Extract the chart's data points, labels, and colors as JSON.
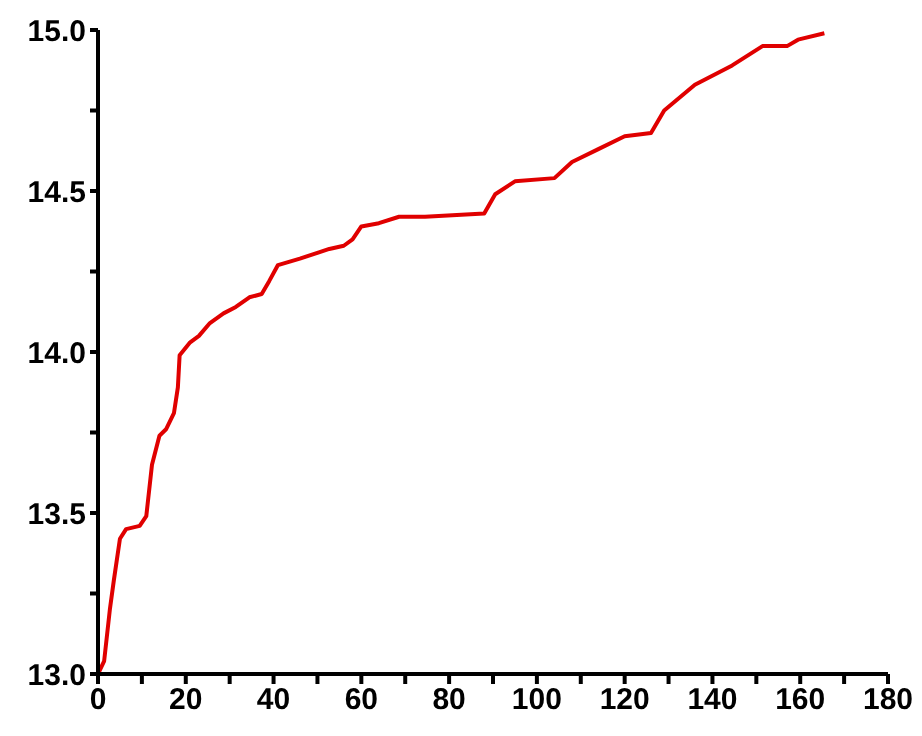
{
  "chart_data": {
    "type": "line",
    "x": [
      0,
      1.4,
      2.7,
      3.6,
      5,
      6.4,
      9.5,
      11,
      12.3,
      14,
      15.5,
      17.3,
      18.2,
      18.6,
      21,
      23,
      25.5,
      28.6,
      31.4,
      34.5,
      37.3,
      39,
      41,
      46,
      50.5,
      52.7,
      56,
      58,
      60,
      64,
      68.6,
      74.5,
      88,
      90.5,
      95,
      104,
      108,
      114,
      120,
      126,
      129,
      136,
      144.5,
      151.4,
      157,
      159.5,
      165.5
    ],
    "series": [
      {
        "color": "#e00000",
        "values": [
          13.0,
          13.04,
          13.2,
          13.29,
          13.42,
          13.45,
          13.46,
          13.49,
          13.65,
          13.74,
          13.76,
          13.81,
          13.89,
          13.99,
          14.03,
          14.05,
          14.09,
          14.12,
          14.14,
          14.17,
          14.18,
          14.22,
          14.27,
          14.29,
          14.31,
          14.32,
          14.33,
          14.35,
          14.39,
          14.4,
          14.42,
          14.42,
          14.43,
          14.49,
          14.53,
          14.54,
          14.59,
          14.63,
          14.67,
          14.68,
          14.75,
          14.83,
          14.89,
          14.95,
          14.95,
          14.97,
          14.99
        ]
      }
    ],
    "xlim": [
      0,
      180
    ],
    "xticks": [
      0,
      {
        "value": 10,
        "label": null
      },
      20,
      {
        "value": 30,
        "label": null
      },
      40,
      {
        "value": 50,
        "label": null
      },
      60,
      {
        "value": 70,
        "label": null
      },
      80,
      {
        "value": 90,
        "label": null
      },
      100,
      {
        "value": 110,
        "label": null
      },
      120,
      {
        "value": 130,
        "label": null
      },
      140,
      {
        "value": 150,
        "label": null
      },
      160,
      {
        "value": 170,
        "label": null
      },
      180
    ],
    "ylim": [
      13,
      15
    ],
    "yticks": [
      {
        "value": 13,
        "label": "13.0"
      },
      {
        "value": 13.25,
        "label": null
      },
      {
        "value": 13.5,
        "label": "13.5"
      },
      {
        "value": 13.75,
        "label": null
      },
      {
        "value": 14,
        "label": "14.0"
      },
      {
        "value": 14.25,
        "label": null
      },
      {
        "value": 14.5,
        "label": "14.5"
      },
      {
        "value": 14.75,
        "label": null
      },
      {
        "value": 15,
        "label": "15.0"
      }
    ],
    "grid": false,
    "legend": false,
    "marker": "none",
    "line_style": "solid"
  }
}
